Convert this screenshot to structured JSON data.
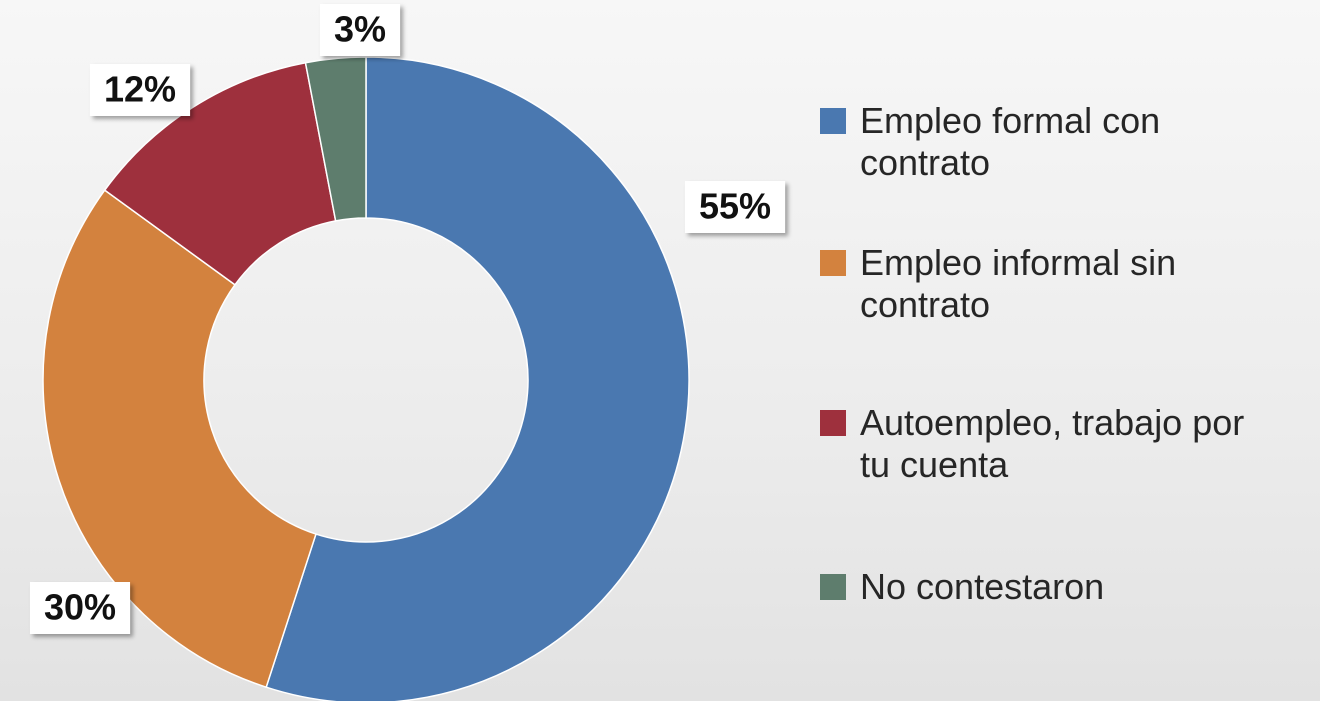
{
  "chart_data": {
    "type": "pie",
    "categories": [
      "Empleo formal con contrato",
      "Empleo informal sin contrato",
      "Autoempleo, trabajo por tu cuenta",
      "No contestaron"
    ],
    "values": [
      55,
      30,
      12,
      3
    ],
    "value_labels": [
      "55%",
      "30%",
      "12%",
      "3%"
    ],
    "colors": [
      "#4a78b0",
      "#d3823e",
      "#9e303d",
      "#5e7d6d"
    ],
    "donut": true,
    "legend": "right"
  }
}
